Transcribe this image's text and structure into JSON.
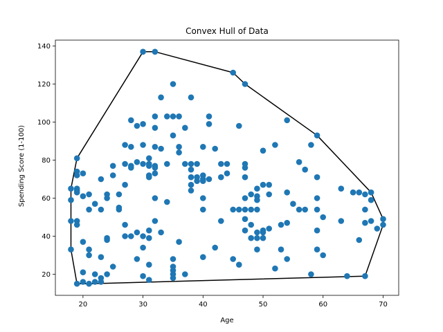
{
  "chart_data": {
    "type": "scatter",
    "title": "Convex Hull of Data",
    "xlabel": "Age",
    "ylabel": "Spending Score (1-100)",
    "xlim": [
      15.4,
      72.6
    ],
    "ylim": [
      8.9,
      143.1
    ],
    "xticks": [
      20,
      30,
      40,
      50,
      60,
      70
    ],
    "yticks": [
      20,
      40,
      60,
      80,
      100,
      120,
      140
    ],
    "grid": false,
    "colors": {
      "points": "#1f77b4",
      "hull": "#000000"
    },
    "points": [
      [
        19,
        81
      ],
      [
        19,
        74
      ],
      [
        19,
        72
      ],
      [
        20,
        73
      ],
      [
        19,
        65
      ],
      [
        19,
        64
      ],
      [
        18,
        65
      ],
      [
        18,
        59
      ],
      [
        19,
        63
      ],
      [
        20,
        61
      ],
      [
        21,
        62
      ],
      [
        22,
        57
      ],
      [
        23,
        70
      ],
      [
        24,
        62
      ],
      [
        23,
        54
      ],
      [
        21,
        54
      ],
      [
        24,
        60
      ],
      [
        25,
        72
      ],
      [
        25,
        77
      ],
      [
        26,
        54
      ],
      [
        26,
        62
      ],
      [
        27,
        67
      ],
      [
        27,
        78
      ],
      [
        28,
        77
      ],
      [
        28,
        76
      ],
      [
        28,
        87
      ],
      [
        27,
        88
      ],
      [
        28,
        101
      ],
      [
        29,
        98
      ],
      [
        29,
        79
      ],
      [
        30,
        78
      ],
      [
        30,
        88
      ],
      [
        30,
        99
      ],
      [
        31,
        77
      ],
      [
        31,
        72
      ],
      [
        31,
        78
      ],
      [
        31,
        81
      ],
      [
        31,
        71
      ],
      [
        32,
        73
      ],
      [
        32,
        76
      ],
      [
        32,
        77
      ],
      [
        32,
        103
      ],
      [
        32,
        97
      ],
      [
        32,
        87
      ],
      [
        33,
        86
      ],
      [
        33,
        113
      ],
      [
        34,
        103
      ],
      [
        34,
        78
      ],
      [
        35,
        93
      ],
      [
        35,
        103
      ],
      [
        35,
        120
      ],
      [
        36,
        103
      ],
      [
        36,
        87
      ],
      [
        36,
        84
      ],
      [
        37,
        97
      ],
      [
        37,
        78
      ],
      [
        38,
        78
      ],
      [
        38,
        113
      ],
      [
        38,
        71
      ],
      [
        38,
        67
      ],
      [
        38,
        64
      ],
      [
        38,
        75
      ],
      [
        39,
        78
      ],
      [
        39,
        69
      ],
      [
        39,
        71
      ],
      [
        40,
        69
      ],
      [
        40,
        70
      ],
      [
        40,
        72
      ],
      [
        40,
        87
      ],
      [
        40,
        60
      ],
      [
        40,
        54
      ],
      [
        41,
        99
      ],
      [
        41,
        103
      ],
      [
        41,
        70
      ],
      [
        42,
        86
      ],
      [
        43,
        71
      ],
      [
        43,
        78
      ],
      [
        44,
        78
      ],
      [
        44,
        73
      ],
      [
        45,
        126
      ],
      [
        46,
        98
      ],
      [
        47,
        120
      ],
      [
        47,
        78
      ],
      [
        47,
        71
      ],
      [
        47,
        76
      ],
      [
        47,
        60
      ],
      [
        48,
        62
      ],
      [
        49,
        61
      ],
      [
        49,
        65
      ],
      [
        49,
        59
      ],
      [
        50,
        67
      ],
      [
        50,
        85
      ],
      [
        51,
        67
      ],
      [
        51,
        62
      ],
      [
        52,
        88
      ],
      [
        54,
        101
      ],
      [
        54,
        63
      ],
      [
        55,
        57
      ],
      [
        56,
        79
      ],
      [
        57,
        75
      ],
      [
        58,
        88
      ],
      [
        59,
        93
      ],
      [
        59,
        71
      ],
      [
        59,
        60
      ],
      [
        60,
        50
      ],
      [
        57,
        54
      ],
      [
        59,
        54
      ],
      [
        59,
        43
      ],
      [
        63,
        65
      ],
      [
        63,
        48
      ],
      [
        65,
        63
      ],
      [
        66,
        63
      ],
      [
        67,
        62
      ],
      [
        67,
        54
      ],
      [
        68,
        63
      ],
      [
        68,
        59
      ],
      [
        67,
        47
      ],
      [
        68,
        48
      ],
      [
        69,
        44
      ],
      [
        70,
        49
      ],
      [
        70,
        46
      ],
      [
        18,
        48
      ],
      [
        18,
        33
      ],
      [
        19,
        46
      ],
      [
        19,
        48
      ],
      [
        20,
        37
      ],
      [
        20,
        21
      ],
      [
        20,
        16
      ],
      [
        19,
        15
      ],
      [
        21,
        15
      ],
      [
        21,
        30
      ],
      [
        21,
        33
      ],
      [
        22,
        16
      ],
      [
        22,
        20
      ],
      [
        23,
        18
      ],
      [
        23,
        16
      ],
      [
        23,
        29
      ],
      [
        24,
        20
      ],
      [
        24,
        38
      ],
      [
        24,
        39
      ],
      [
        25,
        24
      ],
      [
        26,
        55
      ],
      [
        27,
        40
      ],
      [
        27,
        46
      ],
      [
        28,
        40
      ],
      [
        29,
        42
      ],
      [
        29,
        28
      ],
      [
        30,
        19
      ],
      [
        30,
        34
      ],
      [
        30,
        40
      ],
      [
        31,
        17
      ],
      [
        31,
        25
      ],
      [
        31,
        43
      ],
      [
        31,
        39
      ],
      [
        32,
        60
      ],
      [
        32,
        48
      ],
      [
        33,
        42
      ],
      [
        34,
        58
      ],
      [
        35,
        28
      ],
      [
        35,
        24
      ],
      [
        35,
        22
      ],
      [
        35,
        20
      ],
      [
        35,
        18
      ],
      [
        36,
        37
      ],
      [
        37,
        20
      ],
      [
        40,
        29
      ],
      [
        42,
        34
      ],
      [
        43,
        48
      ],
      [
        45,
        28
      ],
      [
        45,
        54
      ],
      [
        46,
        54
      ],
      [
        46,
        25
      ],
      [
        47,
        54
      ],
      [
        47,
        49
      ],
      [
        47,
        43
      ],
      [
        48,
        54
      ],
      [
        48,
        39
      ],
      [
        48,
        46
      ],
      [
        49,
        54
      ],
      [
        49,
        39
      ],
      [
        49,
        33
      ],
      [
        49,
        42
      ],
      [
        50,
        39
      ],
      [
        50,
        42
      ],
      [
        50,
        43
      ],
      [
        51,
        44
      ],
      [
        52,
        23
      ],
      [
        53,
        33
      ],
      [
        53,
        46
      ],
      [
        54,
        47
      ],
      [
        54,
        28
      ],
      [
        56,
        54
      ],
      [
        58,
        20
      ],
      [
        59,
        33
      ],
      [
        60,
        30
      ],
      [
        64,
        19
      ],
      [
        66,
        38
      ],
      [
        67,
        19
      ]
    ],
    "hull": [
      [
        19,
        15
      ],
      [
        21,
        15
      ],
      [
        67,
        19
      ],
      [
        70,
        46
      ],
      [
        70,
        49
      ],
      [
        68,
        63
      ],
      [
        59,
        93
      ],
      [
        47,
        120
      ],
      [
        45,
        126
      ],
      [
        32,
        137
      ],
      [
        30,
        137
      ],
      [
        19,
        81
      ],
      [
        18,
        65
      ],
      [
        18,
        48
      ],
      [
        18,
        33
      ]
    ],
    "extra_points": [
      [
        30,
        137
      ],
      [
        32,
        137
      ]
    ]
  }
}
